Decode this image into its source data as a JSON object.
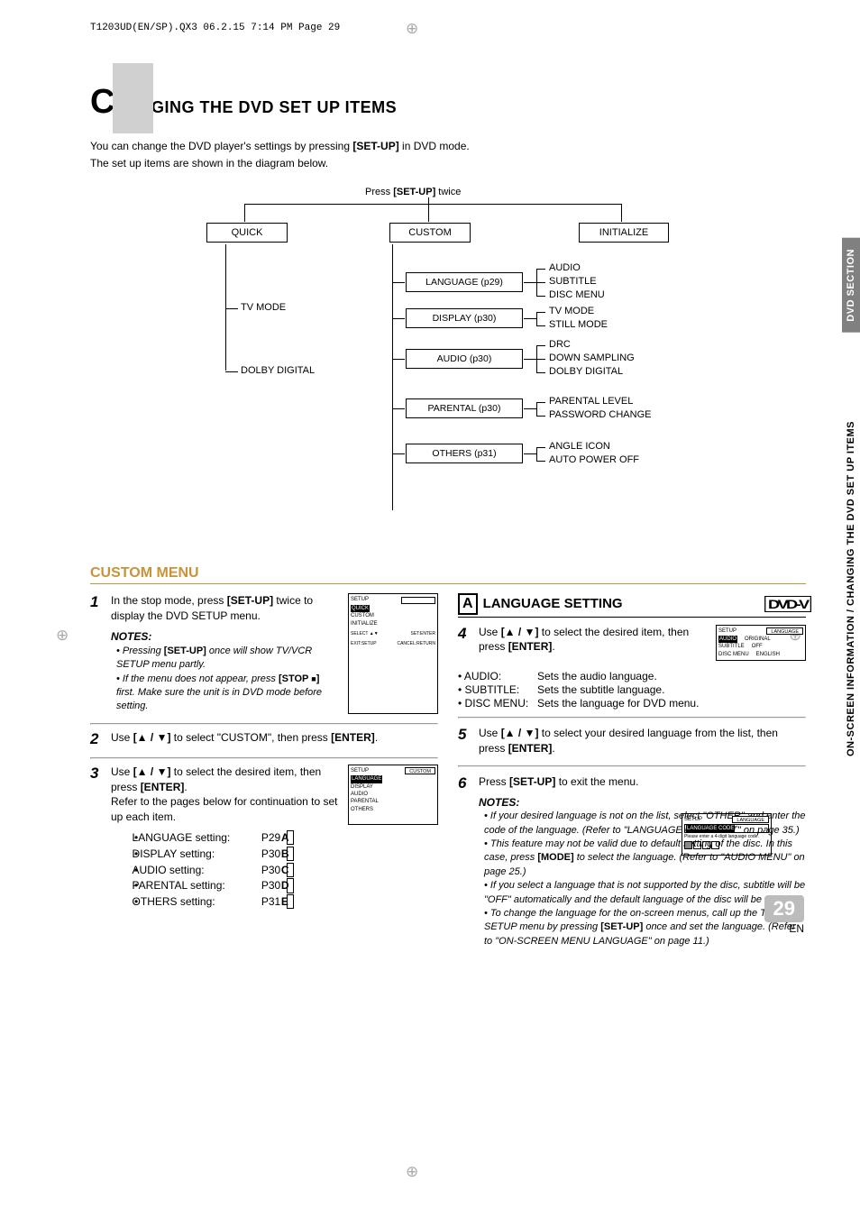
{
  "page_header": "T1203UD(EN/SP).QX3  06.2.15  7:14 PM  Page 29",
  "title_big": "C",
  "title_rest": "HANGING THE DVD SET UP ITEMS",
  "intro1": "You can change the DVD player's settings by pressing ",
  "intro1b": "[SET-UP]",
  "intro1c": " in DVD mode.",
  "intro2": "The set up items are shown in the diagram below.",
  "diagram": {
    "top": "Press [SET-UP] twice",
    "quick": "QUICK",
    "custom": "CUSTOM",
    "initialize": "INITIALIZE",
    "tvmode": "TV MODE",
    "dolby": "DOLBY DIGITAL",
    "lang": "LANGUAGE (p29)",
    "disp": "DISPLAY (p30)",
    "aud": "AUDIO (p30)",
    "par": "PARENTAL (p30)",
    "oth": "OTHERS (p31)",
    "lang_r": [
      "AUDIO",
      "SUBTITLE",
      "DISC MENU"
    ],
    "disp_r": [
      "TV MODE",
      "STILL MODE"
    ],
    "aud_r": [
      "DRC",
      "DOWN SAMPLING",
      "DOLBY DIGITAL"
    ],
    "par_r": [
      "PARENTAL LEVEL",
      "PASSWORD CHANGE"
    ],
    "oth_r": [
      "ANGLE ICON",
      "AUTO POWER OFF"
    ]
  },
  "custom_menu_title": "CUSTOM MENU",
  "step1": {
    "n": "1",
    "a": "In the stop mode, press ",
    "b": "[SET-UP]",
    "c": " twice to display the DVD SETUP menu."
  },
  "notes_t": "NOTES:",
  "note1a": "Pressing ",
  "note1b": "[SET-UP]",
  "note1c": " once will show TV/VCR SETUP menu partly.",
  "note2a": "If the menu does not appear, press ",
  "note2b": "[STOP ",
  "note2c": "]",
  "note2d": " first. Make sure the unit is in DVD mode before setting.",
  "step2": {
    "n": "2",
    "a": "Use ",
    "b": "[▲ / ▼]",
    "c": " to select \"CUSTOM\", then press ",
    "d": "[ENTER]",
    "e": "."
  },
  "step3": {
    "n": "3",
    "a": "Use ",
    "b": "[▲ / ▼]",
    "c": " to select the desired item, then press ",
    "d": "[ENTER]",
    "e": ".",
    "f": "Refer to the pages below for continuation to set up each item."
  },
  "setting_list": [
    {
      "t": "LANGUAGE setting:",
      "p": "P29",
      "l": "A"
    },
    {
      "t": "DISPLAY setting:",
      "p": "P30",
      "l": "B"
    },
    {
      "t": "AUDIO setting:",
      "p": "P30",
      "l": "C"
    },
    {
      "t": "PARENTAL setting:",
      "p": "P30",
      "l": "D"
    },
    {
      "t": "OTHERS setting:",
      "p": "P31",
      "l": "E"
    }
  ],
  "osd1": {
    "t": "SETUP",
    "items": [
      "QUICK",
      "CUSTOM",
      "INITIALIZE"
    ],
    "ft1": "SELECT ▲▼",
    "ft2": "SET:ENTER",
    "ft3": "EXIT:SETUP",
    "ft4": "CANCEL:RETURN"
  },
  "osd2": {
    "t": "SETUP",
    "r": "CUSTOM",
    "items": [
      "LANGUAGE",
      "DISPLAY",
      "AUDIO",
      "PARENTAL",
      "OTHERS"
    ]
  },
  "osd3": {
    "t": "SETUP",
    "r": "LANGUAGE",
    "rows": [
      [
        "AUDIO",
        "ORIGINAL"
      ],
      [
        "SUBTITLE",
        "OFF"
      ],
      [
        "DISC MENU",
        "ENGLISH"
      ]
    ]
  },
  "osd4": {
    "t": "SETUP",
    "r": "LANGUAGE",
    "msg": "LANGUAGE CODE",
    "msg2": "Please enter a 4-digit language code."
  },
  "lang_setting_t": "LANGUAGE SETTING",
  "lang_setting_l": "A",
  "step4": {
    "n": "4",
    "a": "Use ",
    "b": "[▲ / ▼]",
    "c": " to select the desired item, then press ",
    "d": "[ENTER]",
    "e": "."
  },
  "desc": [
    [
      "• AUDIO:",
      "Sets the audio language."
    ],
    [
      "• SUBTITLE:",
      "Sets the subtitle language."
    ],
    [
      "• DISC MENU:",
      "Sets the language for DVD menu."
    ]
  ],
  "step5": {
    "n": "5",
    "a": "Use ",
    "b": "[▲ / ▼]",
    "c": " to select your desired language from the list, then press ",
    "d": "[ENTER]",
    "e": "."
  },
  "step6": {
    "n": "6",
    "a": "Press ",
    "b": "[SET-UP]",
    "c": " to exit the menu."
  },
  "rnotes": [
    "If your desired language is not on the list, select \"OTHER\" and enter the code of the language. (Refer to \"LANGUAGE CODE LIST\" on page 35.)",
    "This feature may not be valid due to default setting of the disc. In this case, press [MODE] to select the language. (Refer to \"AUDIO MENU\" on page 25.)",
    "If you select a language that is not supported by the disc, subtitle will be \"OFF\" automatically and the default language of the disc will be selected.",
    "To change the language for the on-screen menus, call up the TV/VCR SETUP menu by pressing [SET-UP] once and set the language. (Refer to \"ON-SCREEN MENU LANGUAGE\" on page 11.)"
  ],
  "tab1": "DVD SECTION",
  "tab2": "ON-SCREEN INFORMATION / CHANGING THE DVD SET UP ITEMS",
  "page_num": "29",
  "page_en": "EN"
}
